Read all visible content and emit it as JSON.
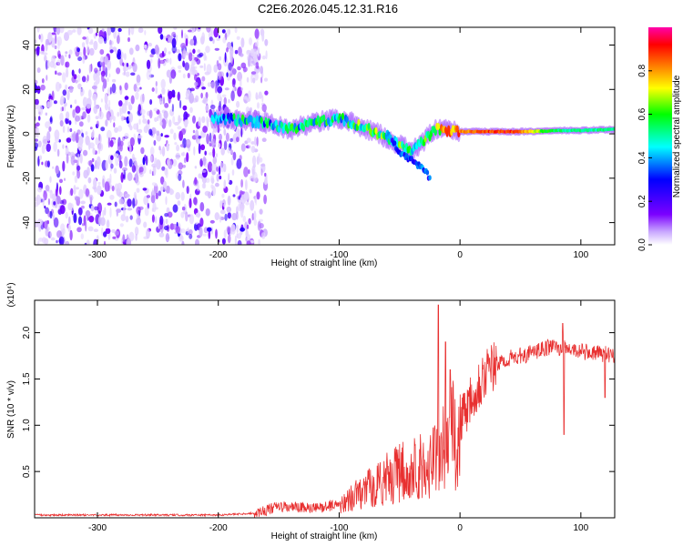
{
  "title": "C2E6.2026.045.12.31.R16",
  "chart_data": [
    {
      "type": "heatmap",
      "xlabel": "Height of straight line (km)",
      "ylabel": "Frequency (Hz)",
      "xlim": [
        -352,
        128
      ],
      "ylim": [
        -50,
        48
      ],
      "xticks": [
        -300,
        -200,
        -100,
        0,
        100
      ],
      "yticks": [
        -40,
        -20,
        0,
        20,
        40
      ],
      "colorbar": {
        "label": "Normalized spectral amplitude",
        "range": [
          0,
          1
        ],
        "ticks": [
          0.0,
          0.2,
          0.4,
          0.6,
          0.8
        ],
        "colormap": [
          "#ffffff",
          "#7b00ff",
          "#0000ff",
          "#00ffff",
          "#00ff00",
          "#ffff00",
          "#ff8000",
          "#ff0000",
          "#ff00aa"
        ]
      },
      "noise_region": {
        "x_from": -352,
        "x_to": -170,
        "amplitude_range": [
          0.0,
          0.25
        ]
      },
      "signal_track": [
        {
          "x": -200,
          "freq": 7,
          "amp": 0.35
        },
        {
          "x": -180,
          "freq": 6,
          "amp": 0.45
        },
        {
          "x": -160,
          "freq": 5,
          "amp": 0.45
        },
        {
          "x": -140,
          "freq": 2,
          "amp": 0.5
        },
        {
          "x": -120,
          "freq": 5,
          "amp": 0.5
        },
        {
          "x": -100,
          "freq": 7,
          "amp": 0.5
        },
        {
          "x": -80,
          "freq": 3,
          "amp": 0.55
        },
        {
          "x": -60,
          "freq": -2,
          "amp": 0.55
        },
        {
          "x": -40,
          "freq": -8,
          "amp": 0.5
        },
        {
          "x": -20,
          "freq": 2,
          "amp": 0.7
        },
        {
          "x": 0,
          "freq": 1,
          "amp": 0.8
        },
        {
          "x": 20,
          "freq": 1,
          "amp": 0.85
        },
        {
          "x": 40,
          "freq": 1,
          "amp": 0.9
        },
        {
          "x": 60,
          "freq": 1,
          "amp": 0.7
        },
        {
          "x": 80,
          "freq": 1.5,
          "amp": 0.55
        },
        {
          "x": 100,
          "freq": 1.5,
          "amp": 0.5
        },
        {
          "x": 128,
          "freq": 2,
          "amp": 0.5
        }
      ],
      "secondary_branch": [
        {
          "x": -60,
          "freq": 0
        },
        {
          "x": -50,
          "freq": -8
        },
        {
          "x": -40,
          "freq": -12
        },
        {
          "x": -30,
          "freq": -16
        },
        {
          "x": -25,
          "freq": -20
        }
      ]
    },
    {
      "type": "line",
      "xlabel": "Height of straight line (km)",
      "ylabel": "SNR (10 * v/v)",
      "y_multiplier": "(x10⁴)",
      "xlim": [
        -352,
        128
      ],
      "ylim": [
        0,
        2.35
      ],
      "xticks": [
        -300,
        -200,
        -100,
        0,
        100
      ],
      "yticks": [
        0.5,
        1.0,
        1.5,
        2.0
      ],
      "color": "#e83030",
      "envelope": [
        {
          "x": -352,
          "y": 0.03
        },
        {
          "x": -200,
          "y": 0.03
        },
        {
          "x": -170,
          "y": 0.05
        },
        {
          "x": -150,
          "y": 0.12
        },
        {
          "x": -120,
          "y": 0.1
        },
        {
          "x": -100,
          "y": 0.15
        },
        {
          "x": -80,
          "y": 0.3
        },
        {
          "x": -60,
          "y": 0.45
        },
        {
          "x": -40,
          "y": 0.55
        },
        {
          "x": -25,
          "y": 0.6
        },
        {
          "x": -18,
          "y": 0.7
        },
        {
          "x": -10,
          "y": 0.85
        },
        {
          "x": 0,
          "y": 1.05
        },
        {
          "x": 10,
          "y": 1.35
        },
        {
          "x": 20,
          "y": 1.55
        },
        {
          "x": 30,
          "y": 1.65
        },
        {
          "x": 40,
          "y": 1.72
        },
        {
          "x": 60,
          "y": 1.78
        },
        {
          "x": 75,
          "y": 1.85
        },
        {
          "x": 90,
          "y": 1.82
        },
        {
          "x": 110,
          "y": 1.78
        },
        {
          "x": 128,
          "y": 1.76
        }
      ],
      "spikes": [
        {
          "x": -18,
          "y": 2.3
        },
        {
          "x": -12,
          "y": 1.9
        },
        {
          "x": -8,
          "y": 1.6
        },
        {
          "x": 85,
          "y": 2.1
        },
        {
          "x": 86,
          "y": 0.9
        },
        {
          "x": 120,
          "y": 1.3
        }
      ]
    }
  ]
}
